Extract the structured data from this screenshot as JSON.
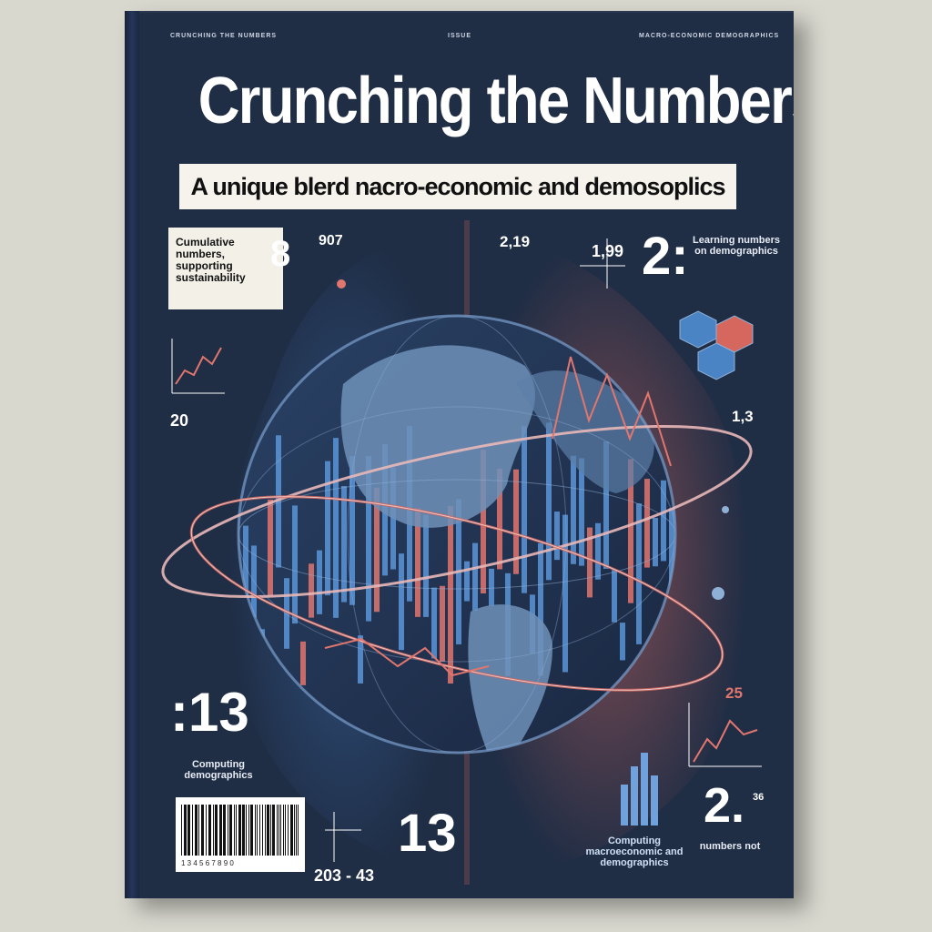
{
  "cover": {
    "title": "Crunching the Numbers",
    "subtitle": "A unique blerd nacro-economic and demosoplics",
    "header_left": "CRUNCHING THE NUMBERS",
    "header_center": "ISSUE",
    "header_right": "MACRO-ECONOMIC DEMOGRAPHICS"
  },
  "labels": {
    "box_top_left": "Cumulative numbers, supporting sustainability",
    "num_8": "8",
    "num_907": "907",
    "num_219": "2,19",
    "num_199": "1,99",
    "num_2_right": "2:",
    "right_text": "Learning numbers on demographics",
    "num_20": "20",
    "num_13_right": "1,3",
    "num_13_left": ":13",
    "left_caption": "Computing demographics",
    "num_25": "25",
    "num_2_bottom": "2.",
    "num_36": "36",
    "bottom_right_text": "numbers not",
    "bottom_center_text": "Computing macroeconomic and demographics",
    "bottom_range": "203 - 43",
    "bottom_big": "13",
    "barcode_label": "1 3 4 5 6 7 8 9 0"
  },
  "colors": {
    "cover_bg": "#1f2d45",
    "globe_blue": "#4a84c4",
    "accent_red": "#e0766e",
    "paper": "#f3f0e8"
  }
}
